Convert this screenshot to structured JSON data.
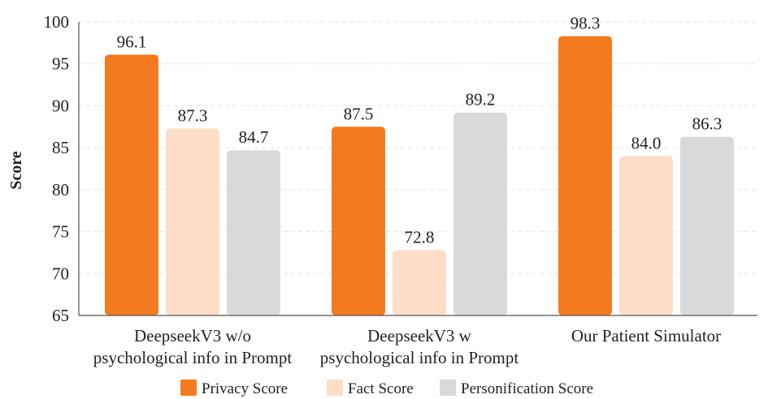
{
  "chart_data": {
    "type": "bar",
    "title": "",
    "xlabel": "",
    "ylabel": "Score",
    "ylim": [
      65,
      100
    ],
    "yticks": [
      65,
      70,
      75,
      80,
      85,
      90,
      95,
      100
    ],
    "grid": true,
    "legend_position": "bottom-center",
    "categories": [
      [
        "DeepseekV3 w/o",
        "psychological info in Prompt"
      ],
      [
        "DeepseekV3 w",
        "psychological info in Prompt"
      ],
      [
        "Our Patient Simulator"
      ]
    ],
    "series": [
      {
        "name": "Privacy Score",
        "color": "#F47A1F",
        "values": [
          96.1,
          87.5,
          98.3
        ],
        "labels": [
          "96.1",
          "87.5",
          "98.3"
        ]
      },
      {
        "name": "Fact Score",
        "color": "#FDDDC8",
        "values": [
          87.3,
          72.8,
          84.0
        ],
        "labels": [
          "87.3",
          "72.8",
          "84.0"
        ]
      },
      {
        "name": "Personification Score",
        "color": "#D9D9D9",
        "values": [
          84.7,
          89.2,
          86.3
        ],
        "labels": [
          "84.7",
          "89.2",
          "86.3"
        ]
      }
    ]
  }
}
